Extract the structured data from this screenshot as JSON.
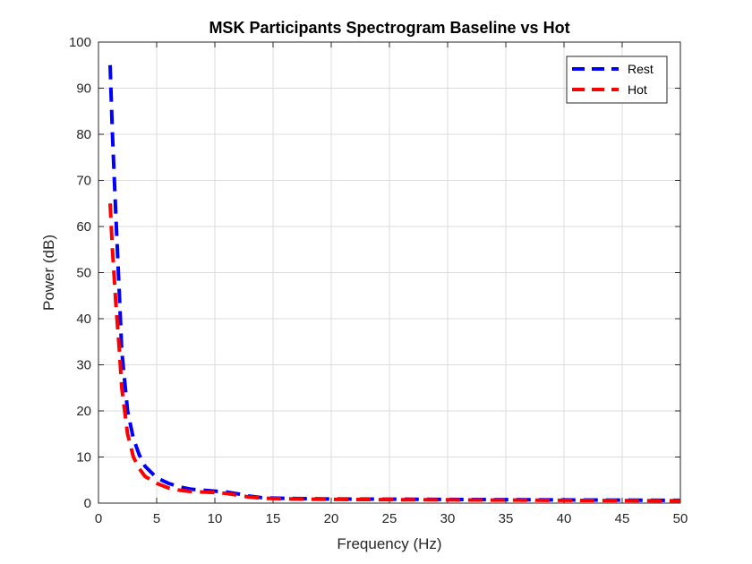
{
  "chart_data": {
    "type": "line",
    "title": "MSK Participants Spectrogram Baseline vs Hot",
    "xlabel": "Frequency (Hz)",
    "ylabel": "Power (dB)",
    "xlim": [
      0,
      50
    ],
    "ylim": [
      0,
      100
    ],
    "xticks": [
      0,
      5,
      10,
      15,
      20,
      25,
      30,
      35,
      40,
      45,
      50
    ],
    "yticks": [
      0,
      10,
      20,
      30,
      40,
      50,
      60,
      70,
      80,
      90,
      100
    ],
    "grid": true,
    "legend_position": "top-right",
    "series": [
      {
        "name": "Rest",
        "color": "#0000ff",
        "line_style": "dashed",
        "x": [
          1.0,
          1.2,
          1.5,
          1.8,
          2.0,
          2.5,
          3.0,
          3.5,
          4.0,
          5.0,
          6.0,
          7.0,
          8.0,
          9.0,
          10.0,
          11.0,
          12.0,
          13.0,
          14.0,
          15.0,
          17.0,
          20.0,
          25.0,
          30.0,
          35.0,
          40.0,
          45.0,
          50.0
        ],
        "y": [
          95,
          80,
          62,
          45,
          33,
          20,
          14,
          10.5,
          8,
          5.5,
          4.3,
          3.5,
          3.0,
          2.8,
          2.6,
          2.4,
          2.0,
          1.5,
          1.2,
          1.1,
          1.0,
          0.9,
          0.85,
          0.8,
          0.75,
          0.7,
          0.65,
          0.6
        ]
      },
      {
        "name": "Hot",
        "color": "#ff0000",
        "line_style": "dashed",
        "x": [
          1.0,
          1.2,
          1.5,
          1.8,
          2.0,
          2.5,
          3.0,
          3.5,
          4.0,
          5.0,
          6.0,
          7.0,
          8.0,
          9.0,
          10.0,
          11.0,
          12.0,
          13.0,
          14.0,
          15.0,
          17.0,
          20.0,
          25.0,
          30.0,
          35.0,
          40.0,
          45.0,
          50.0
        ],
        "y": [
          65,
          55,
          43,
          33,
          25,
          15,
          10,
          7.5,
          5.8,
          4.3,
          3.3,
          2.8,
          2.5,
          2.4,
          2.3,
          2.1,
          1.7,
          1.3,
          1.1,
          1.0,
          0.9,
          0.8,
          0.75,
          0.7,
          0.65,
          0.6,
          0.55,
          0.5
        ]
      }
    ]
  }
}
